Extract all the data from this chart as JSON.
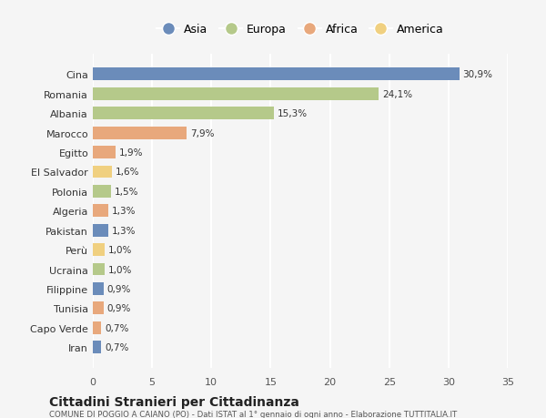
{
  "categories": [
    "Iran",
    "Capo Verde",
    "Tunisia",
    "Filippine",
    "Ucraina",
    "Perù",
    "Pakistan",
    "Algeria",
    "Polonia",
    "El Salvador",
    "Egitto",
    "Marocco",
    "Albania",
    "Romania",
    "Cina"
  ],
  "values": [
    0.7,
    0.7,
    0.9,
    0.9,
    1.0,
    1.0,
    1.3,
    1.3,
    1.5,
    1.6,
    1.9,
    7.9,
    15.3,
    24.1,
    30.9
  ],
  "labels": [
    "0,7%",
    "0,7%",
    "0,9%",
    "0,9%",
    "1,0%",
    "1,0%",
    "1,3%",
    "1,3%",
    "1,5%",
    "1,6%",
    "1,9%",
    "7,9%",
    "15,3%",
    "24,1%",
    "30,9%"
  ],
  "continent_colors": {
    "Asia": "#6b8cba",
    "Europa": "#b5c98a",
    "Africa": "#e8a87c",
    "America": "#f0d080"
  },
  "bar_colors": [
    "#6b8cba",
    "#e8a87c",
    "#e8a87c",
    "#6b8cba",
    "#b5c98a",
    "#f0d080",
    "#6b8cba",
    "#e8a87c",
    "#b5c98a",
    "#f0d080",
    "#e8a87c",
    "#e8a87c",
    "#b5c98a",
    "#b5c98a",
    "#6b8cba"
  ],
  "title": "Cittadini Stranieri per Cittadinanza",
  "subtitle": "COMUNE DI POGGIO A CAIANO (PO) - Dati ISTAT al 1° gennaio di ogni anno - Elaborazione TUTTITALIA.IT",
  "xlim": [
    0,
    35
  ],
  "xticks": [
    0,
    5,
    10,
    15,
    20,
    25,
    30,
    35
  ],
  "background_color": "#f5f5f5",
  "grid_color": "#ffffff",
  "legend_entries": [
    "Asia",
    "Europa",
    "Africa",
    "America"
  ]
}
